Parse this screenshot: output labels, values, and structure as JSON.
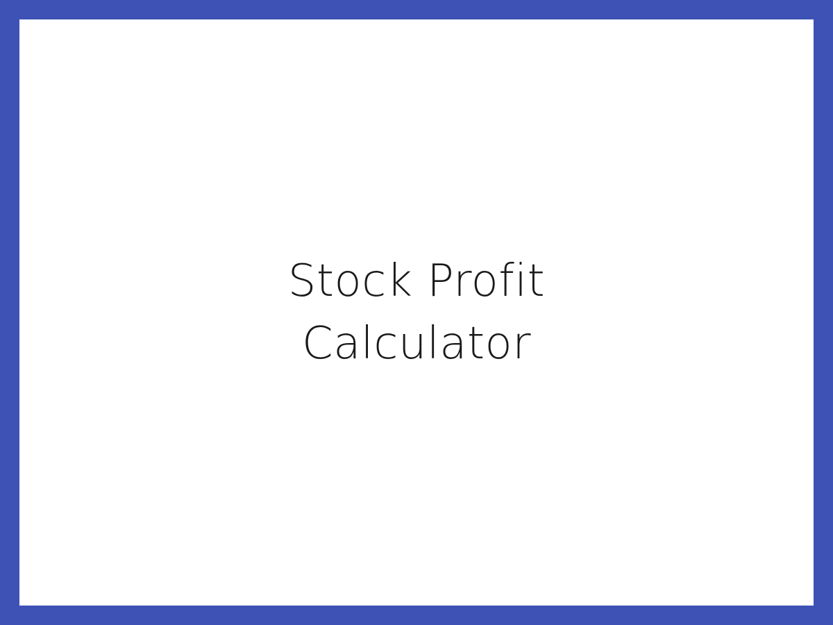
{
  "frame": {
    "border_color": "#3d52b4",
    "background_color": "#ffffff"
  },
  "title": {
    "line1": "Stock Profit",
    "line2": "Calculator",
    "color": "#1a1a1a"
  }
}
